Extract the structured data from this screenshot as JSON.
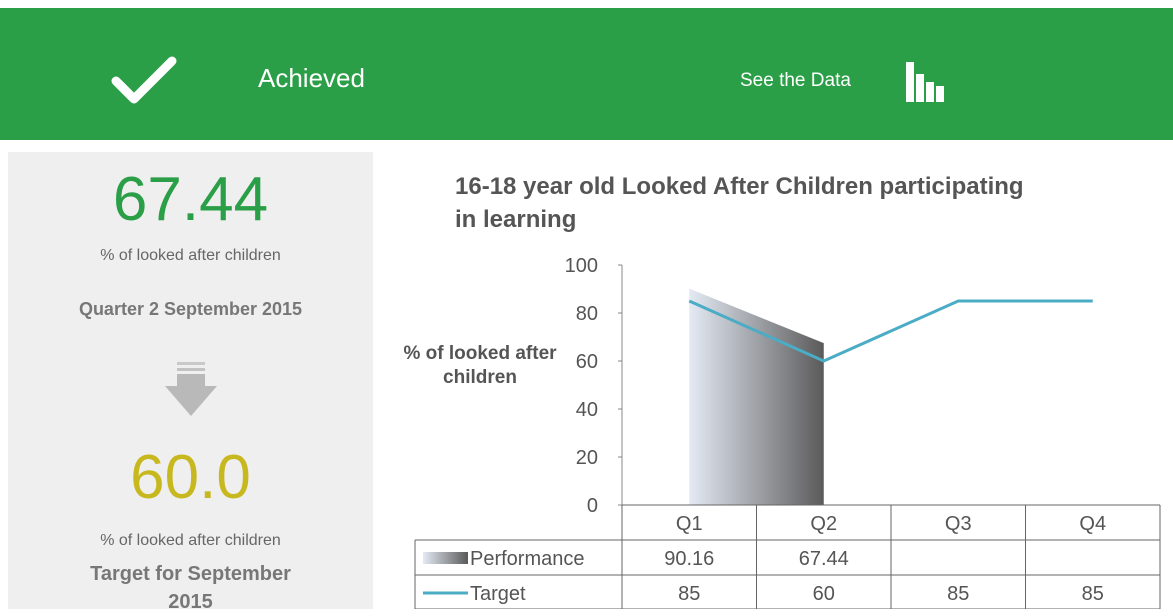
{
  "header": {
    "status": "Achieved",
    "link": "See the Data"
  },
  "summary": {
    "value": "67.44",
    "unit": "% of looked after children",
    "period": "Quarter 2 September 2015",
    "target": "60.0",
    "target_unit": "% of looked after children",
    "target_period": "Target for September 2015"
  },
  "chart_data": {
    "type": "line",
    "title": "16-18 year old Looked After Children participating in learning",
    "ylabel": "% of looked after children",
    "categories": [
      "Q1",
      "Q2",
      "Q3",
      "Q4"
    ],
    "series": [
      {
        "name": "Performance",
        "type": "area",
        "color": [
          "#e4eaf4",
          "#5a5a5a"
        ],
        "values": [
          90.16,
          67.44,
          null,
          null
        ]
      },
      {
        "name": "Target",
        "color": "#4bacc6",
        "values": [
          85,
          60,
          85,
          85
        ]
      }
    ],
    "ylim": [
      0,
      100
    ],
    "yticks": [
      0,
      20,
      40,
      60,
      80,
      100
    ]
  }
}
